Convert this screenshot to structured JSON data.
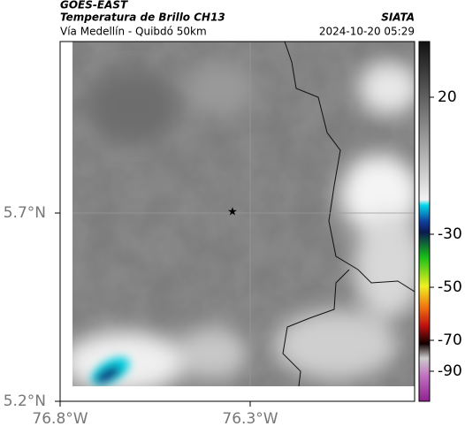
{
  "header": {
    "source": "GOES-EAST",
    "title": "Temperatura de Brillo CH13",
    "subtitle": "Vía Medellín - Quibdó 50km",
    "org": "SIATA",
    "timestamp": "2024-10-20 05:29"
  },
  "map": {
    "lat_labels": [
      "5.7°N",
      "5.2°N"
    ],
    "lon_labels": [
      "76.8°W",
      "76.3°W"
    ]
  },
  "colorbar": {
    "tick_labels": [
      20,
      -30,
      -50,
      -70,
      -90
    ]
  }
}
